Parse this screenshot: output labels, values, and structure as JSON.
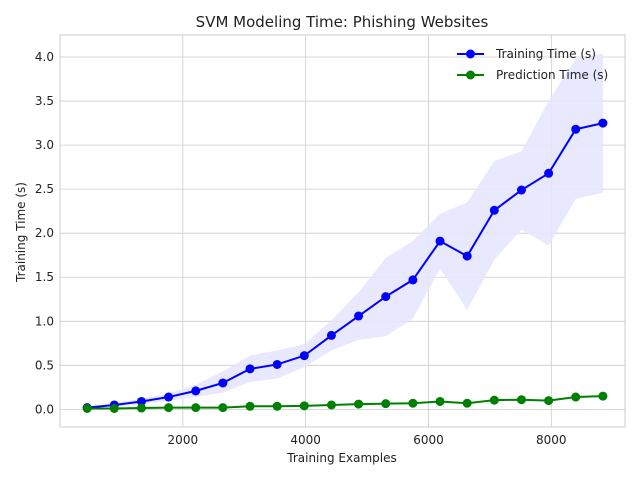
{
  "chart_data": {
    "type": "line",
    "title": "SVM Modeling Time: Phishing Websites",
    "xlabel": "Training Examples",
    "ylabel": "Training Time (s)",
    "xlim": [
      0,
      9200
    ],
    "ylim": [
      -0.2,
      4.25
    ],
    "xticks": [
      2000,
      4000,
      6000,
      8000
    ],
    "yticks": [
      0.0,
      0.5,
      1.0,
      1.5,
      2.0,
      2.5,
      3.0,
      3.5,
      4.0
    ],
    "grid": true,
    "legend_position": "top-right",
    "x": [
      442,
      884,
      1326,
      1768,
      2210,
      2652,
      3094,
      3536,
      3978,
      4420,
      4862,
      5304,
      5746,
      6188,
      6630,
      7072,
      7514,
      7956,
      8398,
      8840
    ],
    "series": [
      {
        "name": "Training Time (s)",
        "color": "#0000ff",
        "values": [
          0.02,
          0.05,
          0.09,
          0.14,
          0.21,
          0.3,
          0.46,
          0.51,
          0.61,
          0.84,
          1.06,
          1.28,
          1.47,
          1.91,
          1.74,
          2.26,
          2.49,
          2.68,
          3.18,
          3.25
        ],
        "band_lower": [
          0.01,
          0.03,
          0.06,
          0.1,
          0.14,
          0.19,
          0.31,
          0.35,
          0.48,
          0.67,
          0.79,
          0.83,
          1.03,
          1.6,
          1.13,
          1.7,
          2.04,
          1.86,
          2.39,
          2.46
        ],
        "band_upper": [
          0.03,
          0.07,
          0.12,
          0.18,
          0.28,
          0.43,
          0.61,
          0.67,
          0.74,
          1.01,
          1.33,
          1.72,
          1.91,
          2.22,
          2.35,
          2.82,
          2.93,
          3.5,
          3.98,
          4.04
        ],
        "band_color": "#e6e6ff"
      },
      {
        "name": "Prediction Time (s)",
        "color": "#008000",
        "values": [
          0.01,
          0.01,
          0.015,
          0.02,
          0.02,
          0.02,
          0.035,
          0.035,
          0.04,
          0.05,
          0.06,
          0.065,
          0.07,
          0.09,
          0.07,
          0.105,
          0.11,
          0.1,
          0.14,
          0.15
        ]
      }
    ]
  }
}
